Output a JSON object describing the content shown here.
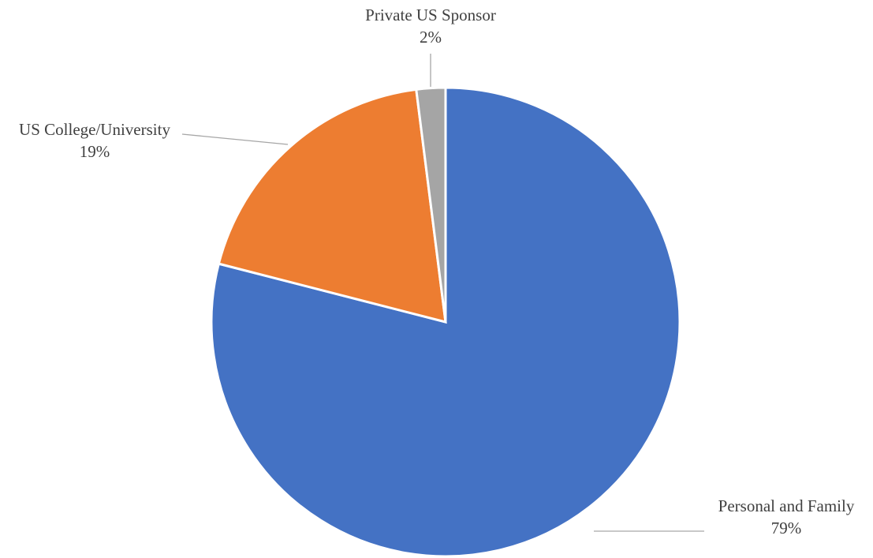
{
  "chart_data": {
    "type": "pie",
    "title": "",
    "start_angle_deg": 0,
    "direction": "clockwise",
    "slices": [
      {
        "label": "Personal and Family",
        "value": 79,
        "value_label": "79%",
        "color": "#4472c4"
      },
      {
        "label": "US College/University",
        "value": 19,
        "value_label": "19%",
        "color": "#ed7d31"
      },
      {
        "label": "Private US Sponsor",
        "value": 2,
        "value_label": "2%",
        "color": "#a5a5a5"
      }
    ],
    "legend": "none",
    "data_labels": "outside-with-leader-lines"
  }
}
